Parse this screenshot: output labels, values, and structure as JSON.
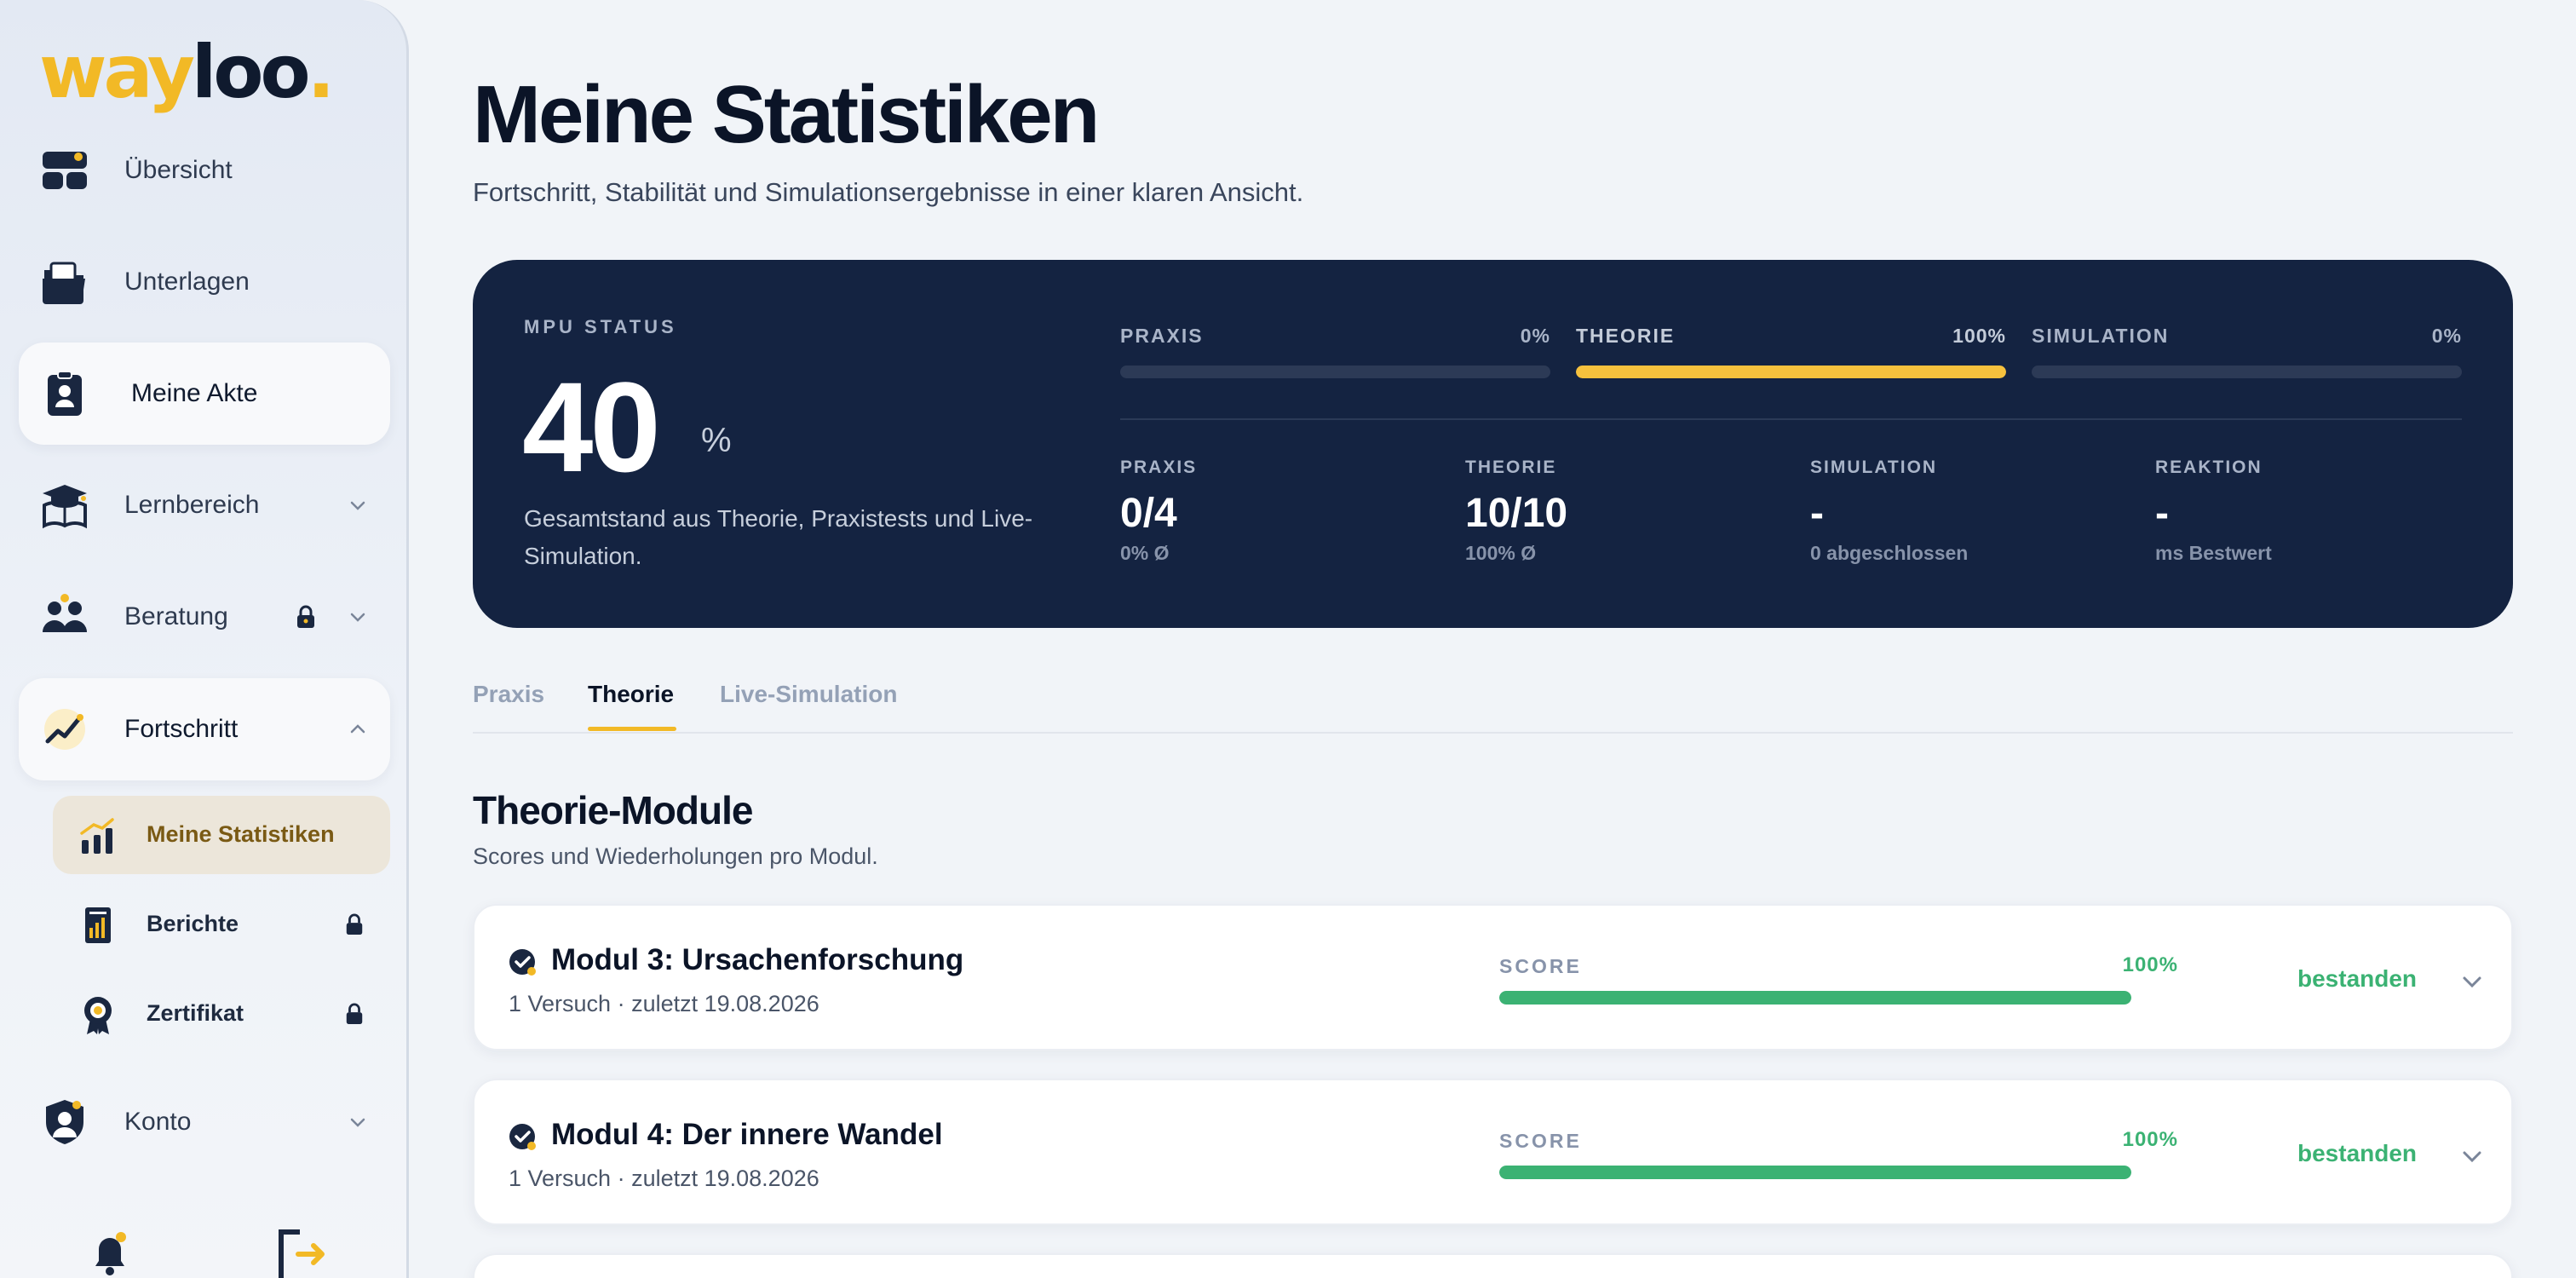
{
  "brand": {
    "part1": "way",
    "part2": "loo",
    "dot": "."
  },
  "sidebar": {
    "items": [
      {
        "label": "Übersicht"
      },
      {
        "label": "Unterlagen"
      },
      {
        "label": "Meine Akte"
      },
      {
        "label": "Lernbereich"
      },
      {
        "label": "Beratung"
      },
      {
        "label": "Fortschritt"
      }
    ],
    "subitems": [
      {
        "label": "Meine Statistiken"
      },
      {
        "label": "Berichte"
      },
      {
        "label": "Zertifikat"
      }
    ],
    "konto": {
      "label": "Konto"
    }
  },
  "page": {
    "title": "Meine Statistiken",
    "subtitle": "Fortschritt, Stabilität und Simulationsergebnisse in einer klaren Ansicht."
  },
  "status": {
    "label": "MPU STATUS",
    "value": "40",
    "unit": "%",
    "description": "Gesamtstand aus Theorie, Praxistests und Live-Simulation.",
    "bars": [
      {
        "label": "PRAXIS",
        "value_text": "0%",
        "progress": 0
      },
      {
        "label": "THEORIE",
        "value_text": "100%",
        "progress": 100
      },
      {
        "label": "SIMULATION",
        "value_text": "0%",
        "progress": 0
      }
    ],
    "stats": [
      {
        "label": "PRAXIS",
        "value": "0/4",
        "sub": "0% Ø"
      },
      {
        "label": "THEORIE",
        "value": "10/10",
        "sub": "100% Ø"
      },
      {
        "label": "SIMULATION",
        "value": "-",
        "sub": "0 abgeschlossen"
      },
      {
        "label": "REAKTION",
        "value": "-",
        "sub": "ms Bestwert"
      }
    ]
  },
  "tabs": [
    {
      "label": "Praxis"
    },
    {
      "label": "Theorie"
    },
    {
      "label": "Live-Simulation"
    }
  ],
  "section": {
    "title": "Theorie-Module",
    "subtitle": "Scores und Wiederholungen pro Modul."
  },
  "modules": [
    {
      "title": "Modul 3: Ursachenforschung",
      "meta": "1 Versuch · zuletzt 19.08.2026",
      "score_label": "SCORE",
      "score_text": "100%",
      "score": 100,
      "status": "bestanden"
    },
    {
      "title": "Modul 4: Der innere Wandel",
      "meta": "1 Versuch · zuletzt 19.08.2026",
      "score_label": "SCORE",
      "score_text": "100%",
      "score": 100,
      "status": "bestanden"
    }
  ],
  "colors": {
    "accent": "#f2b926",
    "navy": "#142341",
    "success": "#3bb273"
  }
}
